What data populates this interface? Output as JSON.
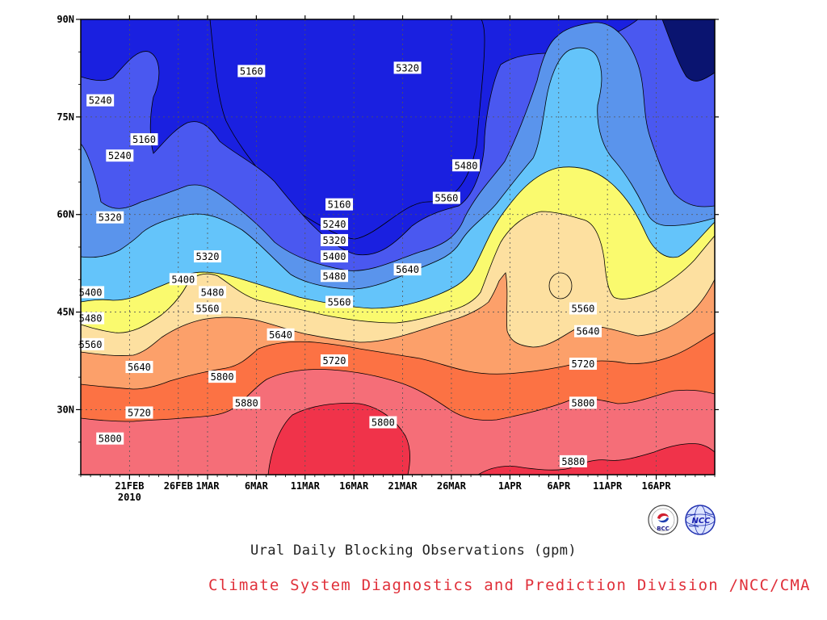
{
  "title": "Ural Daily Blocking Observations (gpm)",
  "credit": "Climate System Diagnostics and Prediction Division /NCC/CMA",
  "logos": {
    "left": {
      "name": "bcc-logo",
      "text": "BCC"
    },
    "right": {
      "name": "ncc-logo",
      "text": "NCC"
    }
  },
  "chart_data": {
    "type": "heatmap",
    "subtype": "filled-contour",
    "title": "Ural Daily Blocking Observations (gpm)",
    "x_ticks": [
      "21FEB",
      "26FEB",
      "1MAR",
      "6MAR",
      "11MAR",
      "16MAR",
      "21MAR",
      "26MAR",
      "1APR",
      "6APR",
      "11APR",
      "16APR"
    ],
    "x_year_label": "2010",
    "y_ticks": [
      "30N",
      "45N",
      "60N",
      "75N",
      "90N"
    ],
    "x_range_days": [
      -5,
      60
    ],
    "y_range_deg": [
      20,
      90
    ],
    "grid": true,
    "contour_levels": [
      5160,
      5240,
      5320,
      5400,
      5480,
      5560,
      5640,
      5720,
      5800,
      5880
    ],
    "band_colors": [
      "#0a1470",
      "#1a20e0",
      "#4a58f0",
      "#5a94ec",
      "#64c4fa",
      "#fafa6e",
      "#fde0a0",
      "#fca06a",
      "#fc7244",
      "#f56e78",
      "#f0334a"
    ],
    "contour_labels": [
      {
        "text": "5160",
        "x": 1.5,
        "y": 71.5
      },
      {
        "text": "5160",
        "x": 12.5,
        "y": 82.0
      },
      {
        "text": "5160",
        "x": 21.5,
        "y": 61.5
      },
      {
        "text": "5240",
        "x": -3.0,
        "y": 77.5
      },
      {
        "text": "5240",
        "x": -1.0,
        "y": 69.0
      },
      {
        "text": "5240",
        "x": 21.0,
        "y": 58.5
      },
      {
        "text": "5320",
        "x": -2.0,
        "y": 59.5
      },
      {
        "text": "5320",
        "x": 8.0,
        "y": 53.5
      },
      {
        "text": "5320",
        "x": 21.0,
        "y": 56.0
      },
      {
        "text": "5320",
        "x": 28.5,
        "y": 82.5
      },
      {
        "text": "5400",
        "x": -4.0,
        "y": 48.0
      },
      {
        "text": "5400",
        "x": 5.5,
        "y": 50.0
      },
      {
        "text": "5400",
        "x": 21.0,
        "y": 53.5
      },
      {
        "text": "5480",
        "x": -4.0,
        "y": 44.0
      },
      {
        "text": "5480",
        "x": 8.5,
        "y": 48.0
      },
      {
        "text": "5480",
        "x": 21.0,
        "y": 50.5
      },
      {
        "text": "5480",
        "x": 34.5,
        "y": 67.5
      },
      {
        "text": "5560",
        "x": -4.0,
        "y": 40.0
      },
      {
        "text": "5560",
        "x": 8.0,
        "y": 45.5
      },
      {
        "text": "5560",
        "x": 21.5,
        "y": 46.5
      },
      {
        "text": "5560",
        "x": 32.5,
        "y": 62.5
      },
      {
        "text": "5560",
        "x": 46.5,
        "y": 45.5
      },
      {
        "text": "5640",
        "x": 1.0,
        "y": 36.5
      },
      {
        "text": "5640",
        "x": 15.5,
        "y": 41.5
      },
      {
        "text": "5640",
        "x": 28.5,
        "y": 51.5
      },
      {
        "text": "5640",
        "x": 47.0,
        "y": 42.0
      },
      {
        "text": "5720",
        "x": 1.0,
        "y": 29.5
      },
      {
        "text": "5720",
        "x": 21.0,
        "y": 37.5
      },
      {
        "text": "5720",
        "x": 46.5,
        "y": 37.0
      },
      {
        "text": "5800",
        "x": -2.0,
        "y": 25.5
      },
      {
        "text": "5800",
        "x": 9.5,
        "y": 35.0
      },
      {
        "text": "5800",
        "x": 26.0,
        "y": 28.0
      },
      {
        "text": "5800",
        "x": 46.5,
        "y": 31.0
      },
      {
        "text": "5880",
        "x": 12.0,
        "y": 31.0
      },
      {
        "text": "5880",
        "x": 45.5,
        "y": 22.0
      }
    ]
  }
}
